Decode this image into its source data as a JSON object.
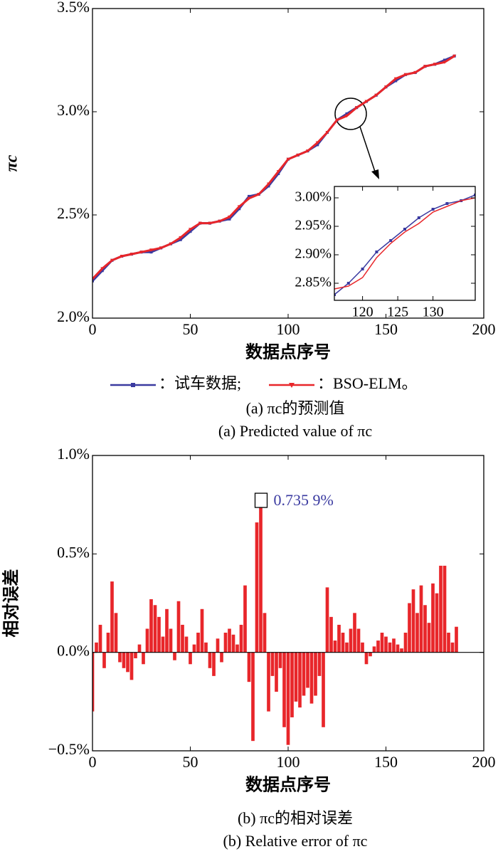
{
  "chart_data": [
    {
      "type": "line",
      "xlabel": "数据点序号",
      "ylabel": "πc",
      "xlim": [
        0,
        200
      ],
      "xticks": [
        0,
        50,
        100,
        150,
        200
      ],
      "ylim": [
        2.0,
        3.5
      ],
      "yticks": [
        {
          "value": 2.0,
          "label": "2.0%"
        },
        {
          "value": 2.5,
          "label": "2.5%"
        },
        {
          "value": 3.0,
          "label": "3.0%"
        },
        {
          "value": 3.5,
          "label": "3.5%"
        }
      ],
      "x": [
        0,
        5,
        10,
        15,
        20,
        25,
        30,
        35,
        40,
        45,
        50,
        55,
        60,
        65,
        70,
        75,
        80,
        85,
        90,
        95,
        100,
        105,
        110,
        115,
        120,
        125,
        130,
        135,
        140,
        145,
        150,
        155,
        160,
        165,
        170,
        175,
        180,
        185
      ],
      "series": [
        {
          "name": "：试车数据;",
          "color": "#3a3aa0",
          "marker": "square",
          "values": [
            2.18,
            2.23,
            2.28,
            2.3,
            2.31,
            2.32,
            2.32,
            2.34,
            2.36,
            2.38,
            2.42,
            2.46,
            2.46,
            2.47,
            2.48,
            2.53,
            2.59,
            2.6,
            2.64,
            2.7,
            2.77,
            2.79,
            2.81,
            2.84,
            2.9,
            2.96,
            2.99,
            3.02,
            3.05,
            3.08,
            3.12,
            3.15,
            3.18,
            3.19,
            3.22,
            3.23,
            3.25,
            3.27
          ]
        },
        {
          "name": "：BSO-ELM。",
          "color": "#e8262a",
          "marker": "triangle",
          "values": [
            2.19,
            2.24,
            2.28,
            2.3,
            2.31,
            2.32,
            2.33,
            2.34,
            2.36,
            2.39,
            2.43,
            2.46,
            2.46,
            2.47,
            2.49,
            2.54,
            2.58,
            2.6,
            2.65,
            2.71,
            2.77,
            2.79,
            2.81,
            2.85,
            2.9,
            2.96,
            2.98,
            3.02,
            3.05,
            3.08,
            3.12,
            3.16,
            3.18,
            3.19,
            3.22,
            3.23,
            3.24,
            3.27
          ]
        }
      ]
    },
    {
      "type": "line",
      "xlim": [
        116,
        136
      ],
      "xticks": [
        120,
        125,
        130
      ],
      "ylim": [
        2.82,
        3.02
      ],
      "yticks": [
        {
          "value": 2.85,
          "label": "2.85%"
        },
        {
          "value": 2.9,
          "label": "2.90%"
        },
        {
          "value": 2.95,
          "label": "2.95%"
        },
        {
          "value": 3.0,
          "label": "3.00%"
        }
      ],
      "x": [
        116,
        118,
        120,
        122,
        124,
        126,
        128,
        130,
        132,
        134,
        136
      ],
      "series": [
        {
          "color": "#3a3aa0",
          "marker": "square",
          "values": [
            2.83,
            2.85,
            2.875,
            2.905,
            2.925,
            2.945,
            2.965,
            2.98,
            2.99,
            2.995,
            3.005
          ]
        },
        {
          "color": "#e8262a",
          "marker": "none",
          "values": [
            2.84,
            2.845,
            2.86,
            2.895,
            2.92,
            2.94,
            2.955,
            2.975,
            2.985,
            2.995,
            3.0
          ]
        }
      ]
    },
    {
      "type": "bar",
      "xlabel": "数据点序号",
      "ylabel": "相对误差",
      "color": "#e8262a",
      "annotation": "0.735 9%",
      "annotation_color": "#3a3aa0",
      "xlim": [
        0,
        200
      ],
      "xticks": [
        0,
        50,
        100,
        150,
        200
      ],
      "ylim": [
        -0.5,
        1.0
      ],
      "yticks": [
        {
          "value": -0.5,
          "label": "−0.5%"
        },
        {
          "value": 0.0,
          "label": "0.0%"
        },
        {
          "value": 0.5,
          "label": "0.5%"
        },
        {
          "value": 1.0,
          "label": "1.0%"
        }
      ],
      "x": [
        0,
        2,
        4,
        6,
        8,
        10,
        12,
        14,
        16,
        18,
        20,
        22,
        24,
        26,
        28,
        30,
        32,
        34,
        36,
        38,
        40,
        42,
        44,
        46,
        48,
        50,
        52,
        54,
        56,
        58,
        60,
        62,
        64,
        66,
        68,
        70,
        72,
        74,
        76,
        78,
        80,
        82,
        84,
        86,
        88,
        90,
        92,
        94,
        96,
        98,
        100,
        102,
        104,
        106,
        108,
        110,
        112,
        114,
        116,
        118,
        120,
        122,
        124,
        126,
        128,
        130,
        132,
        134,
        136,
        138,
        140,
        142,
        144,
        146,
        148,
        150,
        152,
        154,
        156,
        158,
        160,
        162,
        164,
        166,
        168,
        170,
        172,
        174,
        176,
        178,
        180,
        182,
        184,
        186
      ],
      "values": [
        -0.3,
        0.05,
        0.14,
        -0.08,
        0.1,
        0.36,
        0.2,
        -0.05,
        -0.08,
        -0.1,
        -0.14,
        -0.03,
        0.04,
        -0.06,
        0.12,
        0.27,
        0.24,
        0.18,
        0.08,
        0.22,
        0.12,
        -0.04,
        0.26,
        0.14,
        0.08,
        -0.06,
        0.04,
        0.1,
        0.22,
        0.05,
        -0.08,
        -0.12,
        0.07,
        -0.05,
        0.1,
        0.12,
        0.09,
        0.04,
        0.14,
        0.34,
        -0.15,
        -0.45,
        0.66,
        0.7359,
        0.2,
        -0.3,
        -0.12,
        -0.2,
        -0.08,
        -0.38,
        -0.47,
        -0.33,
        -0.25,
        -0.28,
        -0.22,
        -0.18,
        -0.26,
        -0.22,
        -0.12,
        -0.38,
        0.33,
        0.18,
        0.06,
        0.14,
        0.1,
        0.05,
        0.12,
        0.2,
        0.12,
        0.05,
        -0.06,
        -0.02,
        0.03,
        0.06,
        0.1,
        0.08,
        0.05,
        0.07,
        0.04,
        0.02,
        0.1,
        0.25,
        0.32,
        0.2,
        0.34,
        0.24,
        0.15,
        0.35,
        0.3,
        0.44,
        0.44,
        0.1,
        0.05,
        0.13
      ]
    }
  ],
  "captions": [
    "(a) πc的预测值",
    "(a) Predicted value of πc",
    "(b) πc的相对误差",
    "(b) Relative error of πc"
  ]
}
